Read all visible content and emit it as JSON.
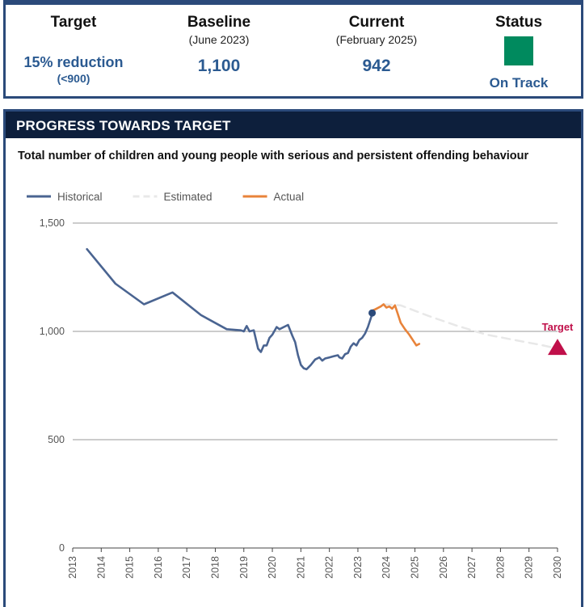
{
  "summary": {
    "target": {
      "title": "Target",
      "value": "15% reduction",
      "sub": "(<900)"
    },
    "baseline": {
      "title": "Baseline",
      "sub": "(June 2023)",
      "value": "1,100"
    },
    "current": {
      "title": "Current",
      "sub": "(February 2025)",
      "value": "942"
    },
    "status": {
      "title": "Status",
      "label": "On Track",
      "color": "#008a5e"
    }
  },
  "progress": {
    "header": "PROGRESS TOWARDS TARGET",
    "chart_title": "Total number of children and young people with serious and persistent offending behaviour"
  },
  "chart_data": {
    "type": "line",
    "legend_position": "top-left",
    "grid": "horizontal",
    "xlim": [
      2013,
      2030
    ],
    "ylim": [
      0,
      1500
    ],
    "x_ticks": [
      "2013",
      "2014",
      "2015",
      "2016",
      "2017",
      "2018",
      "2019",
      "2020",
      "2021",
      "2022",
      "2023",
      "2024",
      "2025",
      "2026",
      "2027",
      "2028",
      "2029",
      "2030"
    ],
    "y_ticks": [
      {
        "value": 0,
        "label": "0"
      },
      {
        "value": 500,
        "label": "500"
      },
      {
        "value": 1000,
        "label": "1,000"
      },
      {
        "value": 1500,
        "label": "1,500"
      }
    ],
    "series": [
      {
        "name": "Historical",
        "color": "#4a6491",
        "style": "solid",
        "points": [
          [
            2013.5,
            1380
          ],
          [
            2014.5,
            1220
          ],
          [
            2015.5,
            1125
          ],
          [
            2016.5,
            1180
          ],
          [
            2017.5,
            1075
          ],
          [
            2018.4,
            1010
          ],
          [
            2018.9,
            1005
          ],
          [
            2019.0,
            1000
          ],
          [
            2019.1,
            1025
          ],
          [
            2019.2,
            1000
          ],
          [
            2019.35,
            1005
          ],
          [
            2019.5,
            920
          ],
          [
            2019.6,
            905
          ],
          [
            2019.7,
            935
          ],
          [
            2019.8,
            935
          ],
          [
            2019.9,
            970
          ],
          [
            2020.0,
            985
          ],
          [
            2020.15,
            1020
          ],
          [
            2020.25,
            1010
          ],
          [
            2020.4,
            1020
          ],
          [
            2020.55,
            1030
          ],
          [
            2020.7,
            980
          ],
          [
            2020.8,
            950
          ],
          [
            2020.9,
            890
          ],
          [
            2021.0,
            845
          ],
          [
            2021.1,
            830
          ],
          [
            2021.2,
            825
          ],
          [
            2021.35,
            845
          ],
          [
            2021.5,
            870
          ],
          [
            2021.65,
            880
          ],
          [
            2021.75,
            865
          ],
          [
            2021.85,
            875
          ],
          [
            2022.0,
            880
          ],
          [
            2022.15,
            885
          ],
          [
            2022.3,
            890
          ],
          [
            2022.35,
            880
          ],
          [
            2022.45,
            875
          ],
          [
            2022.55,
            895
          ],
          [
            2022.65,
            900
          ],
          [
            2022.75,
            930
          ],
          [
            2022.85,
            945
          ],
          [
            2022.95,
            935
          ],
          [
            2023.05,
            960
          ],
          [
            2023.15,
            970
          ],
          [
            2023.25,
            990
          ],
          [
            2023.35,
            1020
          ],
          [
            2023.5,
            1080
          ]
        ]
      },
      {
        "name": "Estimated",
        "color": "#e8e8e8",
        "style": "dashed",
        "points": [
          [
            2023.5,
            1090
          ],
          [
            2023.9,
            1125
          ],
          [
            2024.5,
            1120
          ],
          [
            2025.5,
            1070
          ],
          [
            2026.5,
            1025
          ],
          [
            2027.5,
            985
          ],
          [
            2028.5,
            960
          ],
          [
            2029.5,
            935
          ],
          [
            2030.0,
            920
          ]
        ]
      },
      {
        "name": "Actual",
        "color": "#e8833a",
        "style": "solid",
        "points": [
          [
            2023.5,
            1095
          ],
          [
            2023.65,
            1105
          ],
          [
            2023.8,
            1115
          ],
          [
            2023.9,
            1125
          ],
          [
            2024.0,
            1110
          ],
          [
            2024.1,
            1115
          ],
          [
            2024.2,
            1105
          ],
          [
            2024.3,
            1120
          ],
          [
            2024.4,
            1080
          ],
          [
            2024.5,
            1040
          ],
          [
            2024.65,
            1010
          ],
          [
            2024.8,
            985
          ],
          [
            2024.95,
            955
          ],
          [
            2025.05,
            935
          ],
          [
            2025.15,
            942
          ]
        ]
      }
    ],
    "baseline_marker": {
      "x": 2023.5,
      "y": 1085,
      "color": "#2b4a7a"
    },
    "target_marker": {
      "label": "Target",
      "x": 2030,
      "y": 925,
      "color": "#c0104a"
    }
  }
}
